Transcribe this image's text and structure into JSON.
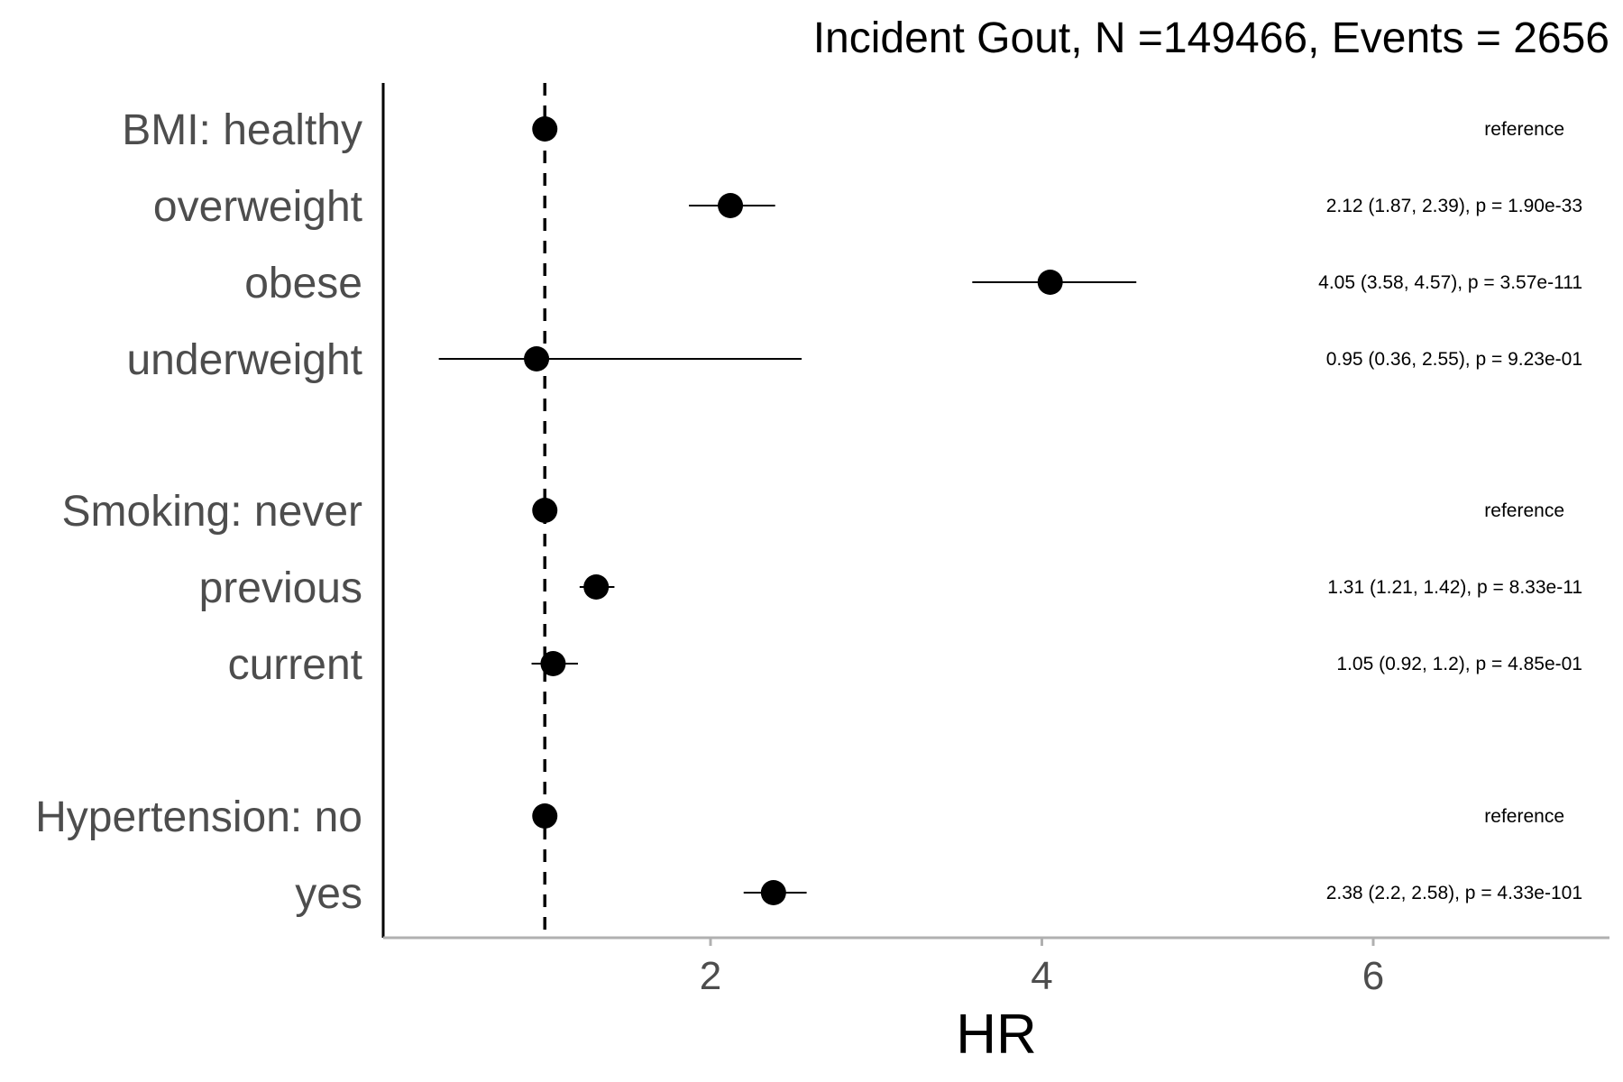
{
  "chart_data": {
    "type": "forest",
    "title": "Incident Gout, N =149466, Events = 2656",
    "xlabel": "HR",
    "xlim": [
      0.2,
      7.4
    ],
    "xticks": [
      2,
      4,
      6
    ],
    "reference_line": 1,
    "grid": false,
    "rows": [
      {
        "label": "BMI: healthy",
        "hr": 1,
        "lo": null,
        "hi": null,
        "annotation": "reference"
      },
      {
        "label": "overweight",
        "hr": 2.12,
        "lo": 1.87,
        "hi": 2.39,
        "annotation": "2.12 (1.87, 2.39), p = 1.90e-33"
      },
      {
        "label": "obese",
        "hr": 4.05,
        "lo": 3.58,
        "hi": 4.57,
        "annotation": "4.05 (3.58, 4.57), p = 3.57e-111"
      },
      {
        "label": "underweight",
        "hr": 0.95,
        "lo": 0.36,
        "hi": 2.55,
        "annotation": "0.95 (0.36, 2.55), p = 9.23e-01"
      },
      {
        "label": "Smoking: never",
        "hr": 1,
        "lo": null,
        "hi": null,
        "annotation": "reference"
      },
      {
        "label": "previous",
        "hr": 1.31,
        "lo": 1.21,
        "hi": 1.42,
        "annotation": "1.31 (1.21, 1.42), p = 8.33e-11"
      },
      {
        "label": "current",
        "hr": 1.05,
        "lo": 0.92,
        "hi": 1.2,
        "annotation": "1.05 (0.92, 1.2), p = 4.85e-01"
      },
      {
        "label": "Hypertension: no",
        "hr": 1,
        "lo": null,
        "hi": null,
        "annotation": "reference"
      },
      {
        "label": "yes",
        "hr": 2.38,
        "lo": 2.2,
        "hi": 2.58,
        "annotation": "2.38 (2.2, 2.58), p = 4.33e-101"
      }
    ]
  }
}
